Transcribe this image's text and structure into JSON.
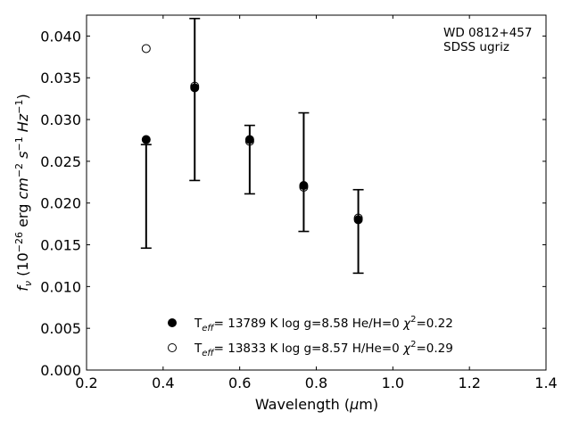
{
  "chart_data": {
    "type": "scatter",
    "title": "",
    "xlabel": "Wavelength (μm)",
    "ylabel": "f_ν (10^-26 erg cm^-2 s^-1 Hz^-1)",
    "xlim": [
      0.2,
      1.4
    ],
    "ylim": [
      0.0,
      0.0425
    ],
    "xticks": [
      0.2,
      0.4,
      0.6,
      0.8,
      1.0,
      1.2,
      1.4
    ],
    "xtick_labels": [
      "0.2",
      "0.4",
      "0.6",
      "0.8",
      "1.0",
      "1.2",
      "1.4"
    ],
    "yticks": [
      0.0,
      0.005,
      0.01,
      0.015,
      0.02,
      0.025,
      0.03,
      0.035,
      0.04
    ],
    "ytick_labels": [
      "0.000",
      "0.005",
      "0.010",
      "0.015",
      "0.020",
      "0.025",
      "0.030",
      "0.035",
      "0.040"
    ],
    "grid": false,
    "legend_position": "bottom-center",
    "annotation": [
      "WD 0812+457",
      "SDSS ugriz"
    ],
    "observed": {
      "x": [
        0.3557,
        0.4825,
        0.6261,
        0.7672,
        0.9097
      ],
      "y": [
        0.0208,
        0.0324,
        0.0252,
        0.0237,
        0.0166
      ],
      "yerr": [
        0.0062,
        0.0097,
        0.0041,
        0.0071,
        0.005
      ]
    },
    "series": [
      {
        "name": "T_eff= 13789 K  log g=8.58  He/H=0  χ²=0.22",
        "marker": "filled-circle",
        "x": [
          0.3557,
          0.4825,
          0.6261,
          0.7672,
          0.9097
        ],
        "y": [
          0.0276,
          0.0338,
          0.0276,
          0.0221,
          0.018
        ]
      },
      {
        "name": "T_eff= 13833 K  log g=8.57  H/He=0  χ²=0.29",
        "marker": "open-circle",
        "x": [
          0.3557,
          0.4825,
          0.6261,
          0.7672,
          0.9097
        ],
        "y": [
          0.0385,
          0.034,
          0.0274,
          0.0219,
          0.0182
        ]
      }
    ]
  }
}
